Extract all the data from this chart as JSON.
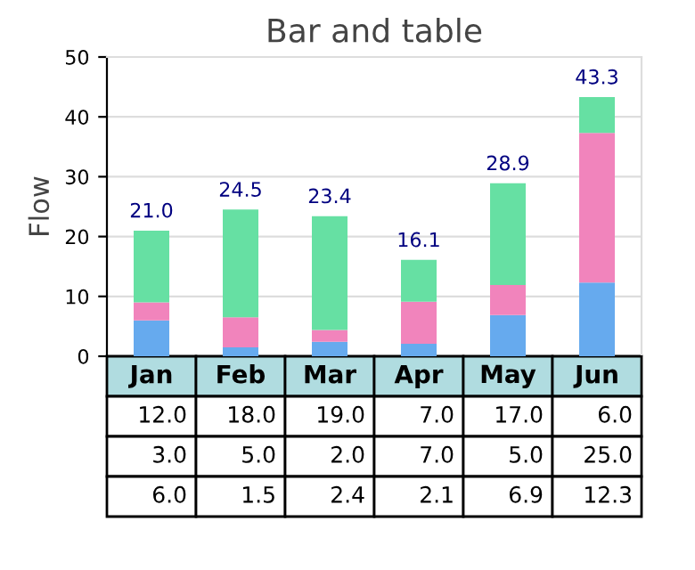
{
  "chart_data": {
    "type": "bar",
    "title": "Bar and table",
    "ylabel": "Flow",
    "stacked": true,
    "categories": [
      "Jan",
      "Feb",
      "Mar",
      "Apr",
      "May",
      "Jun"
    ],
    "series": [
      {
        "color": "#66aaee",
        "values": [
          6.0,
          1.5,
          2.4,
          2.1,
          6.9,
          12.3
        ],
        "value_labels": [
          "6.0",
          "1.5",
          "2.4",
          "2.1",
          "6.9",
          "12.3"
        ]
      },
      {
        "color": "#f184bc",
        "values": [
          3.0,
          5.0,
          2.0,
          7.0,
          5.0,
          25.0
        ],
        "value_labels": [
          "3.0",
          "5.0",
          "2.0",
          "7.0",
          "5.0",
          "25.0"
        ]
      },
      {
        "color": "#66e0a3",
        "values": [
          12.0,
          18.0,
          19.0,
          7.0,
          17.0,
          6.0
        ],
        "value_labels": [
          "12.0",
          "18.0",
          "19.0",
          "7.0",
          "17.0",
          "6.0"
        ]
      }
    ],
    "ylim": [
      0,
      50
    ],
    "yticks": [
      0,
      10,
      20,
      30,
      40,
      50
    ],
    "grid": "y",
    "totals": [
      "21.0",
      "24.5",
      "23.4",
      "16.1",
      "28.9",
      "43.3"
    ]
  }
}
